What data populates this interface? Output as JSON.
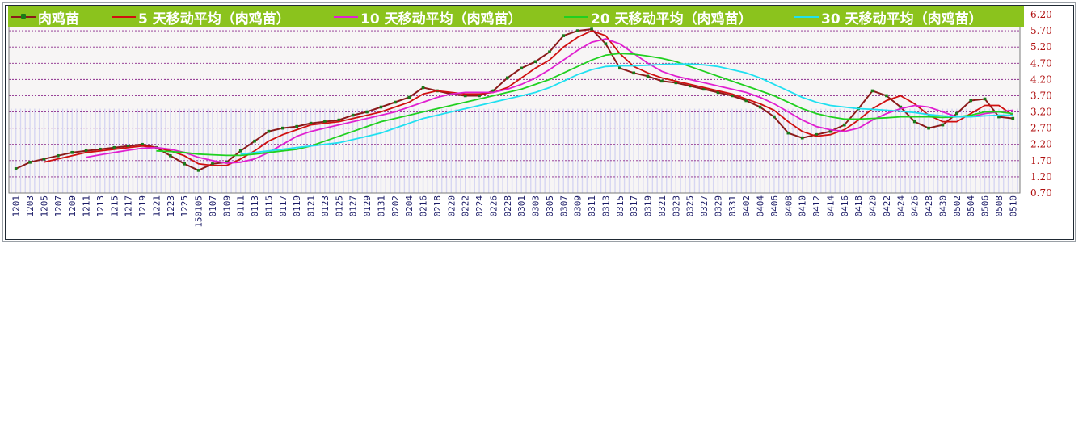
{
  "legend": {
    "items": [
      {
        "label": "肉鸡苗",
        "color": "#8b1a1a"
      },
      {
        "label": "5 天移动平均（肉鸡苗）",
        "color": "#d01010"
      },
      {
        "label": "10 天移动平均（肉鸡苗）",
        "color": "#e020d0"
      },
      {
        "label": "20 天移动平均（肉鸡苗）",
        "color": "#20d020"
      },
      {
        "label": "30 天移动平均（肉鸡苗）",
        "color": "#20e0f0"
      }
    ]
  },
  "chart_data": {
    "type": "line",
    "ylim": [
      0.7,
      6.2
    ],
    "yticks": [
      "6.20",
      "5.70",
      "5.20",
      "4.70",
      "4.20",
      "3.70",
      "3.20",
      "2.70",
      "2.20",
      "1.70",
      "1.20",
      "0.70"
    ],
    "categories": [
      "1201",
      "1203",
      "1205",
      "1207",
      "1209",
      "1211",
      "1213",
      "1215",
      "1217",
      "1219",
      "1221",
      "1223",
      "1225",
      "150105",
      "0107",
      "0109",
      "0111",
      "0113",
      "0115",
      "0117",
      "0119",
      "0121",
      "0123",
      "0125",
      "0127",
      "0129",
      "0131",
      "0202",
      "0204",
      "0216",
      "0218",
      "0220",
      "0222",
      "0224",
      "0226",
      "0228",
      "0301",
      "0303",
      "0305",
      "0307",
      "0309",
      "0311",
      "0313",
      "0315",
      "0317",
      "0319",
      "0321",
      "0323",
      "0325",
      "0327",
      "0329",
      "0331",
      "0402",
      "0404",
      "0406",
      "0408",
      "0410",
      "0412",
      "0414",
      "0416",
      "0418",
      "0420",
      "0422",
      "0424",
      "0426",
      "0428",
      "0430",
      "0502",
      "0504",
      "0506",
      "0508",
      "0510"
    ],
    "grid": "horizontal dashed",
    "legend_placement": "top",
    "series": [
      {
        "name": "肉鸡苗",
        "color": "#8b1a1a",
        "values": [
          1.45,
          1.65,
          1.75,
          1.85,
          1.95,
          2.0,
          2.05,
          2.1,
          2.15,
          2.2,
          2.1,
          1.85,
          1.6,
          1.4,
          1.6,
          1.65,
          2.0,
          2.3,
          2.6,
          2.7,
          2.75,
          2.85,
          2.9,
          2.95,
          3.1,
          3.2,
          3.35,
          3.5,
          3.65,
          3.95,
          3.85,
          3.75,
          3.7,
          3.7,
          3.85,
          4.25,
          4.55,
          4.75,
          5.05,
          5.55,
          5.7,
          5.75,
          5.3,
          4.55,
          4.4,
          4.3,
          4.15,
          4.1,
          4.0,
          3.9,
          3.8,
          3.7,
          3.55,
          3.35,
          3.05,
          2.55,
          2.4,
          2.5,
          2.6,
          2.8,
          3.3,
          3.85,
          3.7,
          3.35,
          2.9,
          2.7,
          2.8,
          3.15,
          3.55,
          3.6,
          3.05,
          3.0
        ]
      },
      {
        "name": "5 天移动平均（肉鸡苗）",
        "color": "#d01010",
        "values": [
          null,
          null,
          1.65,
          1.75,
          1.85,
          1.95,
          2.0,
          2.05,
          2.1,
          2.15,
          2.1,
          2.0,
          1.85,
          1.6,
          1.55,
          1.55,
          1.75,
          2.0,
          2.3,
          2.5,
          2.65,
          2.8,
          2.85,
          2.9,
          3.0,
          3.1,
          3.2,
          3.35,
          3.5,
          3.75,
          3.85,
          3.8,
          3.75,
          3.75,
          3.8,
          3.95,
          4.25,
          4.55,
          4.8,
          5.2,
          5.5,
          5.7,
          5.55,
          5.0,
          4.6,
          4.4,
          4.25,
          4.15,
          4.05,
          3.95,
          3.85,
          3.75,
          3.6,
          3.45,
          3.25,
          2.9,
          2.6,
          2.45,
          2.5,
          2.65,
          2.95,
          3.3,
          3.55,
          3.7,
          3.45,
          3.1,
          2.9,
          2.9,
          3.15,
          3.4,
          3.4,
          3.1
        ]
      },
      {
        "name": "10 天移动平均（肉鸡苗）",
        "color": "#e020d0",
        "values": [
          null,
          null,
          null,
          null,
          null,
          1.8,
          1.88,
          1.95,
          2.02,
          2.08,
          2.1,
          2.05,
          1.95,
          1.8,
          1.7,
          1.62,
          1.65,
          1.75,
          1.95,
          2.2,
          2.45,
          2.6,
          2.7,
          2.8,
          2.9,
          3.0,
          3.1,
          3.2,
          3.35,
          3.5,
          3.65,
          3.75,
          3.8,
          3.8,
          3.8,
          3.9,
          4.05,
          4.25,
          4.5,
          4.8,
          5.1,
          5.35,
          5.45,
          5.3,
          5.0,
          4.7,
          4.45,
          4.3,
          4.2,
          4.1,
          4.0,
          3.9,
          3.8,
          3.65,
          3.45,
          3.2,
          2.95,
          2.75,
          2.65,
          2.6,
          2.7,
          2.95,
          3.15,
          3.3,
          3.4,
          3.35,
          3.2,
          3.05,
          3.05,
          3.15,
          3.2,
          3.25
        ]
      },
      {
        "name": "20 天移动平均（肉鸡苗）",
        "color": "#20d020",
        "values": [
          null,
          null,
          null,
          null,
          null,
          null,
          null,
          null,
          null,
          null,
          2.0,
          1.98,
          1.95,
          1.9,
          1.88,
          1.86,
          1.86,
          1.9,
          1.95,
          2.0,
          2.05,
          2.15,
          2.3,
          2.45,
          2.6,
          2.75,
          2.9,
          3.0,
          3.1,
          3.2,
          3.3,
          3.4,
          3.5,
          3.6,
          3.7,
          3.8,
          3.9,
          4.05,
          4.2,
          4.4,
          4.6,
          4.8,
          4.95,
          5.0,
          4.98,
          4.92,
          4.85,
          4.75,
          4.6,
          4.45,
          4.3,
          4.15,
          4.0,
          3.85,
          3.7,
          3.5,
          3.3,
          3.15,
          3.05,
          2.98,
          2.98,
          3.0,
          3.02,
          3.05,
          3.05,
          3.05,
          3.03,
          3.05,
          3.1,
          3.2,
          3.2,
          3.15
        ]
      },
      {
        "name": "30 天移动平均（肉鸡苗）",
        "color": "#20e0f0",
        "values": [
          null,
          null,
          null,
          null,
          null,
          null,
          null,
          null,
          null,
          null,
          null,
          null,
          null,
          null,
          null,
          null,
          1.9,
          1.95,
          2.0,
          2.05,
          2.1,
          2.15,
          2.2,
          2.25,
          2.35,
          2.45,
          2.55,
          2.7,
          2.85,
          3.0,
          3.1,
          3.2,
          3.3,
          3.4,
          3.5,
          3.6,
          3.7,
          3.8,
          3.95,
          4.15,
          4.35,
          4.5,
          4.6,
          4.62,
          4.62,
          4.64,
          4.66,
          4.68,
          4.68,
          4.65,
          4.6,
          4.5,
          4.4,
          4.25,
          4.05,
          3.85,
          3.65,
          3.5,
          3.4,
          3.35,
          3.3,
          3.28,
          3.25,
          3.22,
          3.18,
          3.12,
          3.08,
          3.05,
          3.05,
          3.08,
          3.1,
          3.1
        ]
      }
    ]
  }
}
